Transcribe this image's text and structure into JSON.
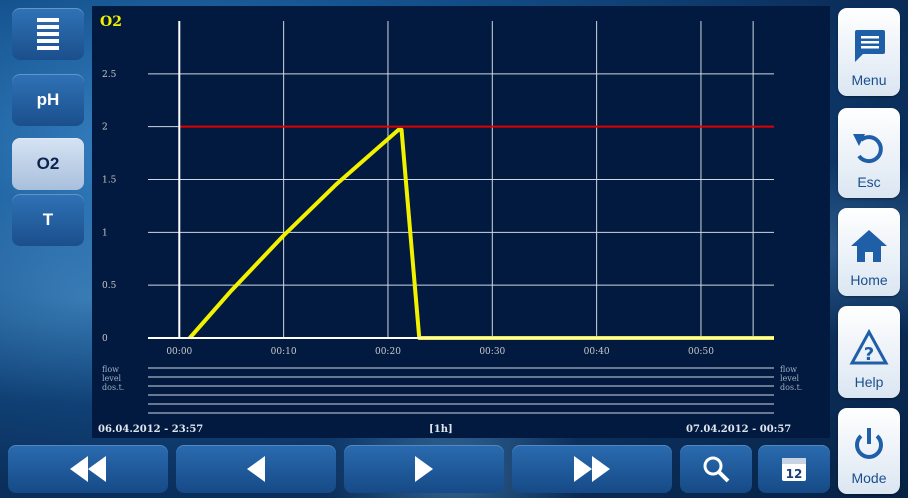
{
  "sidebar": {
    "items": [
      {
        "label": ""
      },
      {
        "label": "pH"
      },
      {
        "label": "O2"
      },
      {
        "label": "T"
      }
    ]
  },
  "right_menu": {
    "menu": "Menu",
    "esc": "Esc",
    "home": "Home",
    "help": "Help",
    "mode": "Mode"
  },
  "bottom": {
    "calendar_day": "12"
  },
  "chart": {
    "date_start": "06.04.2012 - 23:57",
    "date_end": "07.04.2012 - 00:57",
    "period": "[1h]",
    "status_rows": [
      "flow",
      "level",
      "dos.t."
    ]
  },
  "chart_data": {
    "type": "line",
    "title": "",
    "ylabel": "O2",
    "xlabel": "",
    "ylim": [
      0,
      3
    ],
    "xlim": [
      -3,
      57
    ],
    "x_ticks": [
      "00:00",
      "00:10",
      "00:20",
      "00:30",
      "00:40",
      "00:50"
    ],
    "y_ticks": [
      "0",
      "0.5",
      "1",
      "1.5",
      "2",
      "2.5"
    ],
    "grid": true,
    "series": [
      {
        "color": "#f2f200",
        "x": [
          1,
          5,
          10,
          15,
          21,
          21.3,
          23,
          57
        ],
        "y": [
          0,
          0.45,
          0.97,
          1.45,
          1.97,
          1.97,
          0,
          0
        ]
      },
      {
        "color": "#e00000",
        "x": [
          0,
          57
        ],
        "y": [
          2,
          2
        ]
      }
    ],
    "colors": {
      "grid": "#cfd8e3",
      "axis": "#ffffff",
      "background": "#021a3f",
      "tick_label": "#c8c8c8",
      "ylabel": "#f2f200"
    }
  }
}
